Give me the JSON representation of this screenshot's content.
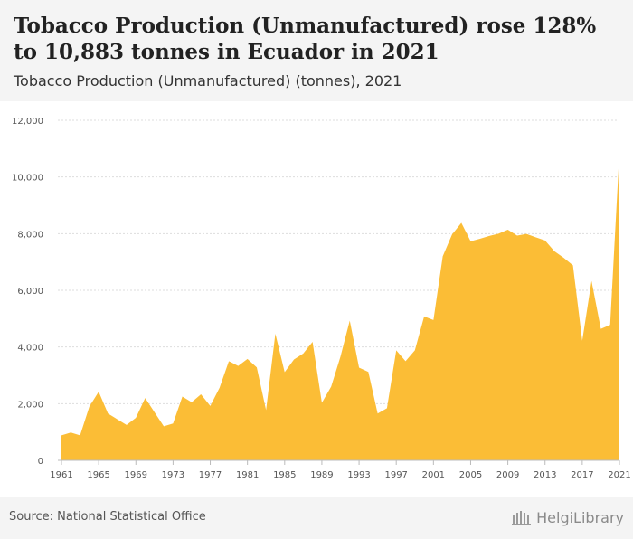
{
  "title": "Tobacco Production (Unmanufactured) rose 128% to 10,883 tonnes in Ecuador in 2021",
  "subtitle": "Tobacco Production (Unmanufactured) (tonnes), 2021",
  "source": "Source: National Statistical Office",
  "brand": "HelgiLibrary",
  "colors": {
    "area": "#fbbd36",
    "grid": "#dddddd",
    "axis_text": "#555555"
  },
  "chart_data": {
    "type": "area",
    "title": "Tobacco Production (Unmanufactured) rose 128% to 10,883 tonnes in Ecuador in 2021",
    "subtitle": "Tobacco Production (Unmanufactured) (tonnes), 2021",
    "xlabel": "",
    "ylabel": "",
    "ylim": [
      0,
      12000
    ],
    "yticks": [
      0,
      2000,
      4000,
      6000,
      8000,
      10000,
      12000
    ],
    "ytick_labels": [
      "0",
      "2,000",
      "4,000",
      "6,000",
      "8,000",
      "10,000",
      "12,000"
    ],
    "xticks": [
      1961,
      1965,
      1969,
      1973,
      1977,
      1981,
      1985,
      1989,
      1993,
      1997,
      2001,
      2005,
      2009,
      2013,
      2017,
      2021
    ],
    "grid": true,
    "x": [
      1961,
      1962,
      1963,
      1964,
      1965,
      1966,
      1967,
      1968,
      1969,
      1970,
      1971,
      1972,
      1973,
      1974,
      1975,
      1976,
      1977,
      1978,
      1979,
      1980,
      1981,
      1982,
      1983,
      1984,
      1985,
      1986,
      1987,
      1988,
      1989,
      1990,
      1991,
      1992,
      1993,
      1994,
      1995,
      1996,
      1997,
      1998,
      1999,
      2000,
      2001,
      2002,
      2003,
      2004,
      2005,
      2006,
      2007,
      2008,
      2009,
      2010,
      2011,
      2012,
      2013,
      2014,
      2015,
      2016,
      2017,
      2018,
      2019,
      2020,
      2021
    ],
    "series": [
      {
        "values": [
          880,
          980,
          880,
          1900,
          2420,
          1650,
          1450,
          1250,
          1500,
          2200,
          1700,
          1200,
          1300,
          2250,
          2050,
          2330,
          1920,
          2560,
          3500,
          3330,
          3580,
          3280,
          1770,
          4470,
          3110,
          3560,
          3770,
          4180,
          2030,
          2600,
          3660,
          4930,
          3270,
          3120,
          1650,
          1840,
          3880,
          3500,
          3880,
          5080,
          4950,
          7200,
          7970,
          8380,
          7730,
          7820,
          7920,
          8000,
          8140,
          7930,
          7990,
          7870,
          7760,
          7380,
          7150,
          6880,
          4220,
          6330,
          4640,
          4780,
          10883
        ]
      }
    ]
  }
}
